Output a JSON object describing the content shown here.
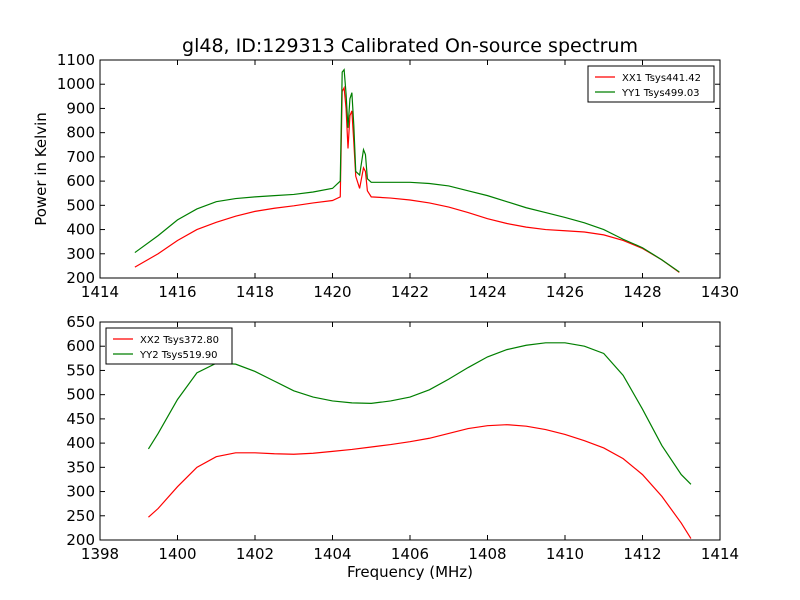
{
  "title": "gl48, ID:129313 Calibrated On-source spectrum",
  "chart_data": [
    {
      "type": "line",
      "ylabel": "Power in Kelvin",
      "xlabel": "",
      "xlim": [
        1414,
        1430
      ],
      "ylim": [
        200,
        1100
      ],
      "xticks": [
        1414,
        1416,
        1418,
        1420,
        1422,
        1424,
        1426,
        1428,
        1430
      ],
      "yticks": [
        200,
        300,
        400,
        500,
        600,
        700,
        800,
        900,
        1000,
        1100
      ],
      "legend_position": "top-right",
      "series": [
        {
          "name": "XX1 Tsys441.42",
          "color": "#ff0000",
          "x": [
            1414.9,
            1415.5,
            1416.0,
            1416.5,
            1417.0,
            1417.5,
            1418.0,
            1418.5,
            1419.0,
            1419.5,
            1420.0,
            1420.2,
            1420.25,
            1420.3,
            1420.35,
            1420.4,
            1420.45,
            1420.5,
            1420.55,
            1420.6,
            1420.7,
            1420.8,
            1420.85,
            1420.9,
            1421.0,
            1421.5,
            1422.0,
            1422.5,
            1423.0,
            1423.5,
            1424.0,
            1424.5,
            1425.0,
            1425.5,
            1426.0,
            1426.5,
            1427.0,
            1427.5,
            1428.0,
            1428.5,
            1428.95
          ],
          "y": [
            245,
            300,
            355,
            400,
            430,
            455,
            475,
            488,
            498,
            510,
            520,
            535,
            970,
            985,
            900,
            735,
            870,
            890,
            760,
            620,
            570,
            655,
            640,
            560,
            535,
            530,
            522,
            510,
            493,
            470,
            445,
            425,
            410,
            400,
            395,
            390,
            378,
            355,
            322,
            275,
            223
          ]
        },
        {
          "name": "YY1 Tsys499.03",
          "color": "#007f00",
          "x": [
            1414.9,
            1415.5,
            1416.0,
            1416.5,
            1417.0,
            1417.5,
            1418.0,
            1418.5,
            1419.0,
            1419.5,
            1420.0,
            1420.2,
            1420.25,
            1420.3,
            1420.35,
            1420.4,
            1420.45,
            1420.5,
            1420.55,
            1420.6,
            1420.7,
            1420.8,
            1420.85,
            1420.9,
            1421.0,
            1421.5,
            1422.0,
            1422.5,
            1423.0,
            1423.5,
            1424.0,
            1424.5,
            1425.0,
            1425.5,
            1426.0,
            1426.5,
            1427.0,
            1427.5,
            1428.0,
            1428.5,
            1428.95
          ],
          "y": [
            305,
            375,
            440,
            485,
            515,
            528,
            535,
            540,
            545,
            555,
            570,
            600,
            1050,
            1060,
            960,
            820,
            940,
            965,
            830,
            640,
            625,
            730,
            710,
            610,
            595,
            595,
            595,
            590,
            580,
            560,
            540,
            515,
            490,
            470,
            450,
            428,
            400,
            360,
            325,
            275,
            225
          ]
        }
      ]
    },
    {
      "type": "line",
      "ylabel": "",
      "xlabel": "Frequency (MHz)",
      "xlim": [
        1398,
        1414
      ],
      "ylim": [
        200,
        650
      ],
      "xticks": [
        1398,
        1400,
        1402,
        1404,
        1406,
        1408,
        1410,
        1412,
        1414
      ],
      "yticks": [
        200,
        250,
        300,
        350,
        400,
        450,
        500,
        550,
        600,
        650
      ],
      "legend_position": "top-left",
      "series": [
        {
          "name": "XX2 Tsys372.80",
          "color": "#ff0000",
          "x": [
            1399.25,
            1399.5,
            1400.0,
            1400.5,
            1401.0,
            1401.5,
            1402.0,
            1402.5,
            1403.0,
            1403.5,
            1404.0,
            1404.5,
            1405.0,
            1405.5,
            1406.0,
            1406.5,
            1407.0,
            1407.5,
            1408.0,
            1408.5,
            1409.0,
            1409.5,
            1410.0,
            1410.5,
            1411.0,
            1411.5,
            1412.0,
            1412.5,
            1413.0,
            1413.25
          ],
          "y": [
            247,
            265,
            310,
            350,
            372,
            380,
            380,
            378,
            377,
            379,
            383,
            387,
            392,
            397,
            403,
            410,
            420,
            430,
            436,
            438,
            435,
            428,
            418,
            405,
            390,
            368,
            335,
            290,
            235,
            203
          ]
        },
        {
          "name": "YY2 Tsys519.90",
          "color": "#007f00",
          "x": [
            1399.25,
            1399.5,
            1400.0,
            1400.5,
            1401.0,
            1401.5,
            1402.0,
            1402.5,
            1403.0,
            1403.5,
            1404.0,
            1404.5,
            1405.0,
            1405.5,
            1406.0,
            1406.5,
            1407.0,
            1407.5,
            1408.0,
            1408.5,
            1409.0,
            1409.5,
            1410.0,
            1410.5,
            1411.0,
            1411.5,
            1412.0,
            1412.5,
            1413.0,
            1413.25
          ],
          "y": [
            388,
            420,
            490,
            545,
            565,
            563,
            548,
            528,
            508,
            495,
            487,
            483,
            482,
            487,
            495,
            510,
            532,
            556,
            578,
            593,
            602,
            607,
            607,
            600,
            585,
            540,
            470,
            395,
            335,
            315
          ]
        }
      ]
    }
  ]
}
